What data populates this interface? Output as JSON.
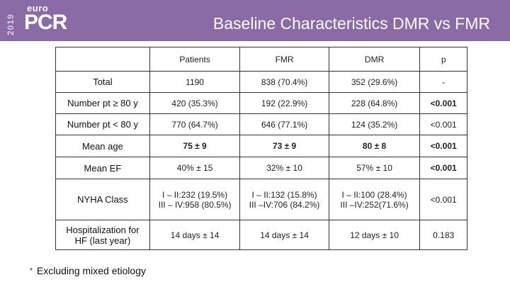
{
  "header": {
    "year": "2019",
    "brand_top": "euro",
    "brand_main": "PCR",
    "title": "Baseline  Characteristics DMR vs FMR"
  },
  "table": {
    "columns": [
      "",
      "Patients",
      "FMR",
      "DMR",
      "p"
    ],
    "rows": [
      {
        "label": "Total",
        "patients": "1190",
        "fmr": "838 (70.4%)",
        "dmr": "352 (29.6%)",
        "p": "-"
      },
      {
        "label": "Number pt ≥ 80 y",
        "patients": "420 (35.3%)",
        "fmr": "192 (22.9%)",
        "dmr": "228 (64.8%)",
        "p": "<0.001"
      },
      {
        "label": "Number pt < 80 y",
        "patients": "770 (64.7%)",
        "fmr": "646 (77.1%)",
        "dmr": "124 (35.2%)",
        "p": "<0.001"
      },
      {
        "label": "Mean age",
        "patients": "75 ± 9",
        "fmr": "73 ± 9",
        "dmr": "80 ± 8",
        "p": "<0.001"
      },
      {
        "label": "Mean EF",
        "patients": "40% ± 15",
        "fmr": "32% ± 10",
        "dmr": "57% ± 10",
        "p": "<0.001"
      },
      {
        "label": "NYHA Class",
        "patients": [
          "I – II:232 (19.5%)",
          "III – IV:958 (80.5%)"
        ],
        "fmr": [
          "I – II:132 (15.8%)",
          "III –IV:706 (84.2%)"
        ],
        "dmr": [
          "I – II:100 (28.4%)",
          "III –IV:252(71.6%)"
        ],
        "p": "<0.001"
      },
      {
        "label": [
          "Hospitalization for",
          "HF (last year)"
        ],
        "patients": "14 days ± 14",
        "fmr": "14 days ± 14",
        "dmr": "12 days ± 10",
        "p": "0.183"
      }
    ]
  },
  "footnote": {
    "star": "*",
    "text": "Excluding mixed etiology"
  }
}
